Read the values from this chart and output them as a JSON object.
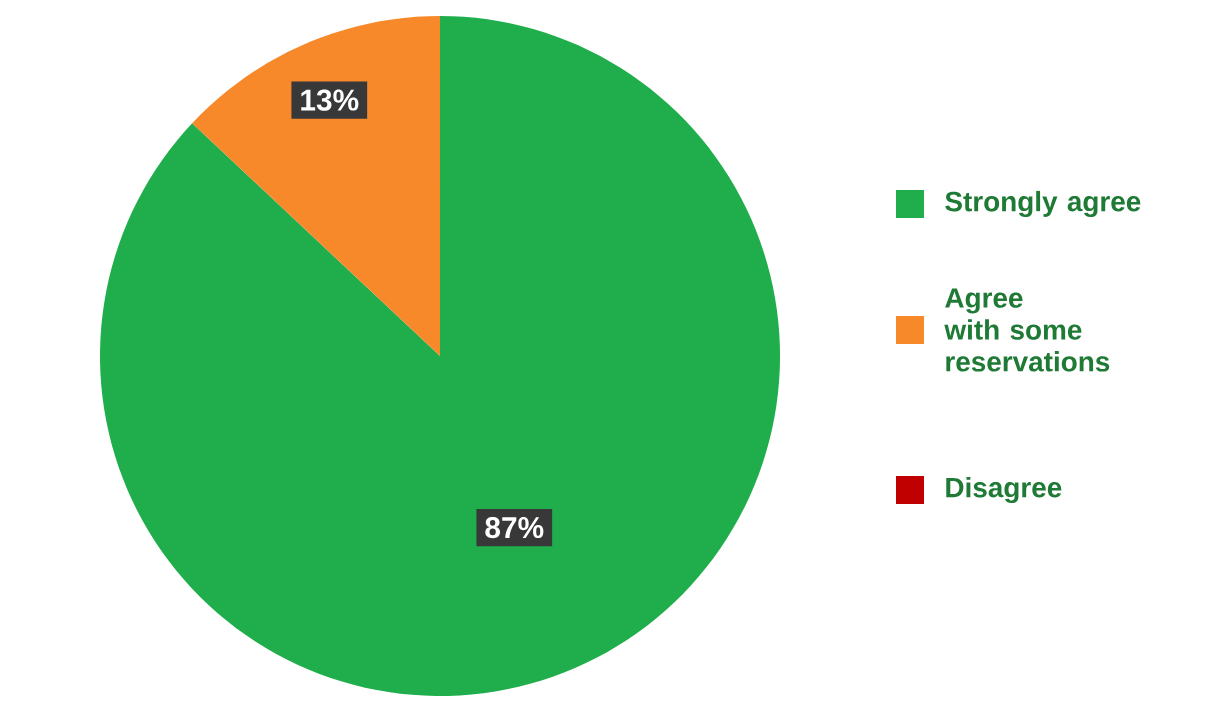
{
  "chart_data": {
    "type": "pie",
    "categories": [
      "Strongly agree",
      "Agree with some reservations",
      "Disagree"
    ],
    "values": [
      87,
      13,
      0
    ],
    "colors": [
      "#1fae4b",
      "#f7892b",
      "#c00000"
    ],
    "value_labels": [
      "87%",
      "13%",
      null
    ],
    "legend": "right"
  }
}
